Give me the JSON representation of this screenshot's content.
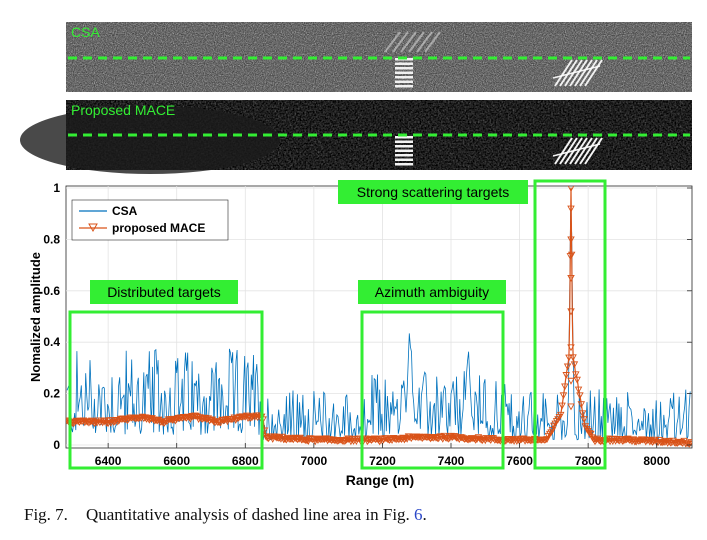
{
  "panels": [
    {
      "label": "CSA",
      "style": "noisy"
    },
    {
      "label": "Proposed MACE",
      "style": "clean"
    }
  ],
  "chart_data": {
    "type": "line",
    "xlabel": "Range (m)",
    "ylabel": "Nomalized amplitude",
    "xlim": [
      6280,
      8100
    ],
    "ylim": [
      0,
      1
    ],
    "xticks": [
      "6400",
      "6600",
      "6800",
      "7000",
      "7200",
      "7400",
      "7600",
      "7800",
      "8000"
    ],
    "yticks": [
      "0",
      "0.2",
      "0.4",
      "0.6",
      "0.8",
      "1"
    ],
    "grid": true,
    "legend_position": "top-left",
    "series": [
      {
        "name": "CSA",
        "color": "#0072bd",
        "marker": "none",
        "description_level": "noisy, mean ~0.12, peaks to 0.46 near 7280 and 1.0 near 7750"
      },
      {
        "name": "proposed MACE",
        "color": "#d95319",
        "marker": "triangle-down"
      }
    ],
    "csa_features": {
      "baseline_mean": 0.12,
      "peaks": [
        [
          7280,
          0.46
        ],
        [
          7450,
          0.38
        ],
        [
          7750,
          1.0
        ]
      ]
    },
    "mace_profile": [
      [
        6280,
        0.09
      ],
      [
        6400,
        0.09
      ],
      [
        6500,
        0.11
      ],
      [
        6560,
        0.09
      ],
      [
        6650,
        0.11
      ],
      [
        6720,
        0.09
      ],
      [
        6800,
        0.11
      ],
      [
        6850,
        0.11
      ],
      [
        6860,
        0.03
      ],
      [
        7000,
        0.02
      ],
      [
        7150,
        0.02
      ],
      [
        7200,
        0.02
      ],
      [
        7300,
        0.03
      ],
      [
        7400,
        0.03
      ],
      [
        7550,
        0.02
      ],
      [
        7680,
        0.02
      ],
      [
        7720,
        0.12
      ],
      [
        7745,
        0.35
      ],
      [
        7750,
        1.0
      ],
      [
        7755,
        0.35
      ],
      [
        7790,
        0.08
      ],
      [
        7820,
        0.02
      ],
      [
        7900,
        0.02
      ],
      [
        8100,
        0.01
      ]
    ],
    "annotations": [
      {
        "text": "Distributed targets",
        "x_range": [
          6280,
          6850
        ]
      },
      {
        "text": "Azimuth ambiguity",
        "x_range": [
          7160,
          7560
        ]
      },
      {
        "text": "Strong scattering targets",
        "x_range": [
          7680,
          7820
        ]
      }
    ],
    "annotation_color": "#33ee33"
  },
  "caption": {
    "number": "Fig. 7.",
    "text": "Quantitative analysis of dashed line area in Fig.",
    "ref": "6",
    "end": "."
  }
}
